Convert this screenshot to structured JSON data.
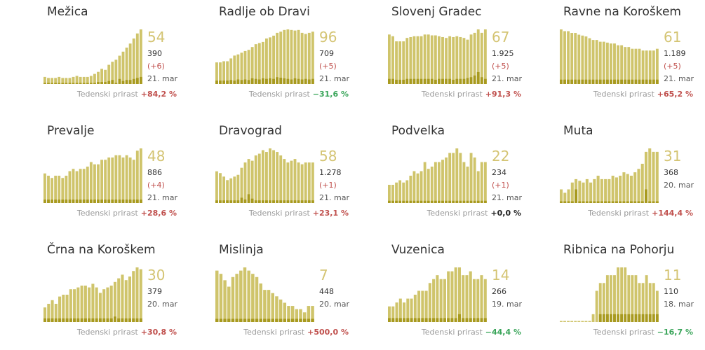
{
  "label_weekly": "Tedenski prirast",
  "colors": {
    "bar": "#cfc46b",
    "bar_dark": "#a89a1f",
    "big_number": "#d4c473",
    "positive": "#c0504d",
    "negative": "#3aa55a"
  },
  "chart_data": [
    {
      "type": "bar",
      "title": "Mežica",
      "big": "54",
      "total": "390",
      "delta": "(+6)",
      "date": "21. mar",
      "weekly": "+84,2 %",
      "trend": "pos",
      "values": [
        7,
        6,
        6,
        6,
        7,
        6,
        6,
        6,
        7,
        8,
        7,
        7,
        7,
        8,
        10,
        12,
        15,
        14,
        19,
        22,
        24,
        28,
        32,
        36,
        40,
        45,
        50,
        54
      ],
      "dark": [
        1,
        1,
        1,
        1,
        1,
        1,
        1,
        1,
        1,
        1,
        1,
        1,
        1,
        1,
        1,
        2,
        2,
        2,
        3,
        4,
        1,
        5,
        3,
        4,
        4,
        5,
        6,
        7
      ]
    },
    {
      "type": "bar",
      "title": "Radlje ob Dravi",
      "big": "96",
      "total": "709",
      "delta": "(+5)",
      "date": "21. mar",
      "weekly": "−31,6 %",
      "trend": "neg",
      "values": [
        38,
        38,
        40,
        40,
        45,
        50,
        52,
        55,
        58,
        60,
        65,
        70,
        72,
        74,
        80,
        82,
        85,
        90,
        92,
        95,
        96,
        95,
        94,
        95,
        90,
        88,
        90,
        92
      ],
      "dark": [
        6,
        6,
        6,
        6,
        7,
        6,
        8,
        7,
        8,
        7,
        10,
        9,
        8,
        10,
        9,
        10,
        9,
        12,
        11,
        10,
        9,
        8,
        10,
        9,
        8,
        9,
        8,
        9
      ]
    },
    {
      "type": "bar",
      "title": "Slovenj Gradec",
      "big": "67",
      "total": "1.925",
      "delta": "(+5)",
      "date": "21. mar",
      "weekly": "+91,3 %",
      "trend": "pos",
      "values": [
        58,
        56,
        50,
        50,
        50,
        54,
        55,
        56,
        56,
        56,
        58,
        58,
        57,
        57,
        56,
        55,
        54,
        56,
        55,
        56,
        55,
        54,
        52,
        58,
        60,
        64,
        60,
        64
      ],
      "dark": [
        6,
        6,
        5,
        5,
        5,
        6,
        6,
        6,
        6,
        6,
        6,
        6,
        6,
        5,
        6,
        6,
        6,
        6,
        5,
        6,
        6,
        6,
        7,
        8,
        10,
        14,
        8,
        6
      ]
    },
    {
      "type": "bar",
      "title": "Ravne na Koroškem",
      "big": "61",
      "total": "1.189",
      "delta": "(+5)",
      "date": "21. mar",
      "weekly": "+65,2 %",
      "trend": "pos",
      "values": [
        62,
        60,
        60,
        58,
        58,
        56,
        55,
        54,
        52,
        50,
        50,
        48,
        48,
        47,
        46,
        46,
        44,
        44,
        42,
        42,
        40,
        40,
        40,
        38,
        38,
        38,
        38,
        40
      ],
      "dark": [
        5,
        5,
        5,
        5,
        5,
        5,
        5,
        5,
        5,
        5,
        5,
        5,
        5,
        5,
        5,
        5,
        5,
        5,
        5,
        5,
        5,
        5,
        5,
        5,
        5,
        5,
        5,
        5
      ]
    },
    {
      "type": "bar",
      "title": "Prevalje",
      "big": "48",
      "total": "886",
      "delta": "(+4)",
      "date": "21. mar",
      "weekly": "+28,6 %",
      "trend": "pos",
      "values": [
        26,
        24,
        22,
        24,
        24,
        22,
        24,
        28,
        30,
        28,
        30,
        30,
        32,
        36,
        34,
        34,
        38,
        38,
        40,
        40,
        42,
        42,
        40,
        42,
        40,
        38,
        46,
        48
      ],
      "dark": [
        3,
        3,
        3,
        3,
        3,
        3,
        3,
        3,
        3,
        3,
        3,
        3,
        3,
        3,
        3,
        3,
        3,
        3,
        3,
        3,
        3,
        3,
        3,
        3,
        3,
        3,
        3,
        3
      ]
    },
    {
      "type": "bar",
      "title": "Dravograd",
      "big": "58",
      "total": "1.278",
      "delta": "(+1)",
      "date": "21. mar",
      "weekly": "+23,1 %",
      "trend": "pos",
      "values": [
        36,
        34,
        30,
        26,
        28,
        30,
        32,
        40,
        46,
        50,
        48,
        54,
        56,
        60,
        58,
        62,
        60,
        58,
        54,
        50,
        46,
        48,
        50,
        46,
        44,
        46,
        46,
        46
      ],
      "dark": [
        3,
        3,
        3,
        3,
        3,
        3,
        3,
        6,
        4,
        10,
        5,
        3,
        3,
        3,
        3,
        3,
        3,
        3,
        3,
        3,
        3,
        3,
        3,
        3,
        3,
        3,
        3,
        3
      ]
    },
    {
      "type": "bar",
      "title": "Podvelka",
      "big": "22",
      "total": "234",
      "delta": "(+1)",
      "date": "21. mar",
      "weekly": "+0,0 %",
      "trend": "zero",
      "values": [
        8,
        8,
        9,
        10,
        9,
        10,
        12,
        14,
        13,
        14,
        18,
        15,
        16,
        18,
        18,
        19,
        20,
        22,
        22,
        24,
        22,
        18,
        16,
        22,
        20,
        14,
        18,
        18
      ],
      "dark": [
        1,
        1,
        1,
        1,
        1,
        1,
        1,
        1,
        1,
        1,
        1,
        1,
        1,
        1,
        1,
        1,
        1,
        1,
        1,
        1,
        1,
        1,
        1,
        1,
        1,
        1,
        1,
        1
      ]
    },
    {
      "type": "bar",
      "title": "Muta",
      "big": "31",
      "total": "368",
      "delta": "",
      "date": "20. mar",
      "weekly": "+144,4 %",
      "trend": "pos",
      "values": [
        8,
        6,
        8,
        12,
        14,
        13,
        12,
        14,
        12,
        14,
        16,
        14,
        14,
        14,
        16,
        15,
        16,
        18,
        17,
        16,
        18,
        20,
        23,
        30,
        32,
        30,
        30
      ],
      "dark": [
        1,
        1,
        1,
        1,
        8,
        1,
        1,
        1,
        1,
        1,
        1,
        1,
        1,
        1,
        1,
        1,
        1,
        1,
        1,
        1,
        1,
        1,
        1,
        8,
        1,
        1,
        1
      ]
    },
    {
      "type": "bar",
      "title": "Črna na Koroškem",
      "big": "30",
      "total": "379",
      "delta": "",
      "date": "20. mar",
      "weekly": "+30,8 %",
      "trend": "pos",
      "values": [
        8,
        10,
        12,
        10,
        14,
        15,
        15,
        18,
        18,
        19,
        20,
        20,
        19,
        21,
        19,
        16,
        18,
        19,
        20,
        22,
        24,
        26,
        23,
        25,
        28,
        30,
        29
      ],
      "dark": [
        2,
        2,
        2,
        2,
        2,
        2,
        2,
        2,
        2,
        2,
        2,
        2,
        2,
        2,
        2,
        2,
        2,
        2,
        2,
        3,
        2,
        2,
        2,
        2,
        2,
        2,
        2
      ]
    },
    {
      "type": "bar",
      "title": "Mislinja",
      "big": "7",
      "total": "448",
      "delta": "",
      "date": "20. mar",
      "weekly": "+500,0 %",
      "trend": "pos",
      "values": [
        16,
        15,
        13,
        11,
        14,
        15,
        16,
        17,
        16,
        15,
        14,
        12,
        10,
        10,
        9,
        8,
        7,
        6,
        5,
        5,
        4,
        4,
        3,
        5,
        5
      ],
      "dark": [
        1,
        1,
        1,
        1,
        1,
        1,
        1,
        1,
        1,
        1,
        1,
        1,
        1,
        1,
        1,
        1,
        1,
        1,
        1,
        1,
        1,
        1,
        1,
        1,
        1
      ]
    },
    {
      "type": "bar",
      "title": "Vuzenica",
      "big": "14",
      "total": "266",
      "delta": "",
      "date": "19. mar",
      "weekly": "−44,4 %",
      "trend": "neg",
      "values": [
        4,
        4,
        5,
        6,
        5,
        6,
        6,
        7,
        8,
        8,
        8,
        10,
        11,
        12,
        11,
        11,
        13,
        13,
        14,
        14,
        12,
        12,
        13,
        11,
        11,
        12,
        11
      ],
      "dark": [
        1,
        1,
        1,
        1,
        1,
        1,
        1,
        1,
        1,
        1,
        1,
        1,
        1,
        1,
        1,
        1,
        1,
        1,
        1,
        2,
        1,
        1,
        1,
        1,
        1,
        1,
        1
      ]
    },
    {
      "type": "bar",
      "title": "Ribnica na Pohorju",
      "big": "11",
      "total": "110",
      "delta": "",
      "date": "18. mar",
      "weekly": "−16,7 %",
      "trend": "neg",
      "values": [
        0,
        0,
        0,
        0,
        0,
        0,
        0,
        0,
        0,
        1,
        4,
        5,
        5,
        6,
        6,
        6,
        7,
        7,
        7,
        6,
        6,
        6,
        5,
        5,
        6,
        5,
        5,
        4
      ],
      "dark": [
        0,
        0,
        0,
        0,
        0,
        0,
        0,
        0,
        0,
        0,
        0,
        1,
        1,
        1,
        1,
        1,
        1,
        1,
        1,
        1,
        1,
        1,
        1,
        1,
        1,
        1,
        1,
        1
      ]
    }
  ]
}
